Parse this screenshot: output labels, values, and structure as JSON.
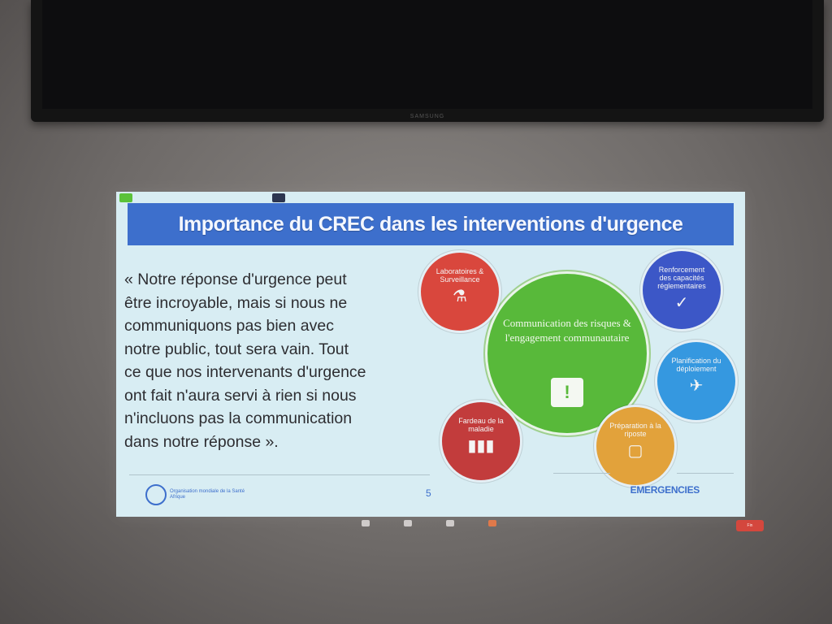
{
  "tv": {
    "brand": "SAMSUNG"
  },
  "zoom": {
    "tab_speaker": "",
    "tab_view": ""
  },
  "slide": {
    "title": "Importance du CREC dans les interventions d'urgence",
    "quote_lines": [
      "« Notre réponse d'urgence peut",
      "être incroyable, mais si nous ne",
      "communiquons pas bien avec",
      "notre public, tout sera vain. Tout",
      "ce que nos intervenants d'urgence",
      "ont fait n'aura servi à rien si nous",
      "n'incluons pas la communication",
      "dans notre réponse »."
    ],
    "center_circle": {
      "text": "Communication des risques & l'engagement communautaire",
      "icon": "speech-bubble-exclamation-icon"
    },
    "circles": [
      {
        "label": "Laboratoires & Surveillance",
        "icon": "flask-icon",
        "color": "#d9473d"
      },
      {
        "label": "Renforcement des capacités réglementaires",
        "icon": "checkmark-icon",
        "color": "#3c57c7"
      },
      {
        "label": "Planification du déploiement",
        "icon": "airplane-icon",
        "color": "#3598e0"
      },
      {
        "label": "Préparation à la riposte",
        "icon": "clipboard-icon",
        "color": "#e2a23b"
      },
      {
        "label": "Fardeau de la maladie",
        "icon": "bar-chart-icon",
        "color": "#c23c3c"
      }
    ],
    "page_number": "5",
    "footer_left": "Organisation mondiale de la Santé",
    "footer_left_region": "Afrique",
    "footer_right": "EMERGENCIES"
  },
  "toolbar": {
    "end_label": "Fin"
  },
  "colors": {
    "title_blue": "#3d6fcc",
    "slide_bg": "#d8edf3",
    "green": "#58b93a"
  }
}
